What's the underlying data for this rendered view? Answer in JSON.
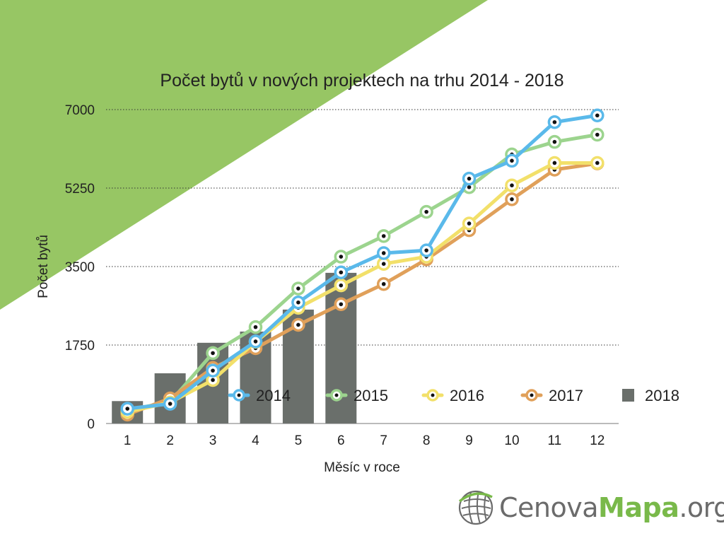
{
  "colors": {
    "accent_triangle": "#97c664",
    "bar_2018": "#6a6f6b",
    "line_2014": "#5ab9ea",
    "line_2015": "#9cd48e",
    "line_2016": "#f2e06a",
    "line_2017": "#e0a05a",
    "marker_dot": "#111111"
  },
  "logo": {
    "part1": "Cenova",
    "part2": "Mapa",
    "part3": ".org",
    "icon": "globe-grid-icon"
  },
  "chart_data": {
    "type": "line",
    "title": "Počet bytů v nových projektech na trhu 2014 - 2018",
    "xlabel": "Měsíc v roce",
    "ylabel": "Počet bytů",
    "categories": [
      "1",
      "2",
      "3",
      "4",
      "5",
      "6",
      "7",
      "8",
      "9",
      "10",
      "11",
      "12"
    ],
    "ylim": [
      0,
      7000
    ],
    "yticks": [
      0,
      1750,
      3500,
      5250,
      7000
    ],
    "ytick_labels": [
      "0",
      "1750",
      "3500",
      "5250",
      "7000"
    ],
    "grid": "horizontal dotted",
    "legend_position": "inside bottom-right",
    "bars": {
      "name": "2018",
      "values": [
        500,
        1120,
        1800,
        2050,
        2540,
        3360
      ]
    },
    "series": [
      {
        "name": "2014",
        "key": "line_2014",
        "values": [
          330,
          440,
          1180,
          1830,
          2700,
          3370,
          3800,
          3860,
          5460,
          5860,
          6720,
          6870
        ]
      },
      {
        "name": "2015",
        "key": "line_2015",
        "values": [
          300,
          480,
          1570,
          2150,
          3010,
          3720,
          4180,
          4720,
          5270,
          6000,
          6280,
          6440
        ]
      },
      {
        "name": "2016",
        "key": "line_2016",
        "values": [
          260,
          470,
          970,
          1820,
          2580,
          3080,
          3560,
          3720,
          4460,
          5310,
          5810,
          5810
        ]
      },
      {
        "name": "2017",
        "key": "line_2017",
        "values": [
          200,
          560,
          1240,
          1680,
          2200,
          2660,
          3110,
          3660,
          4310,
          5000,
          5660,
          5800
        ]
      }
    ]
  }
}
